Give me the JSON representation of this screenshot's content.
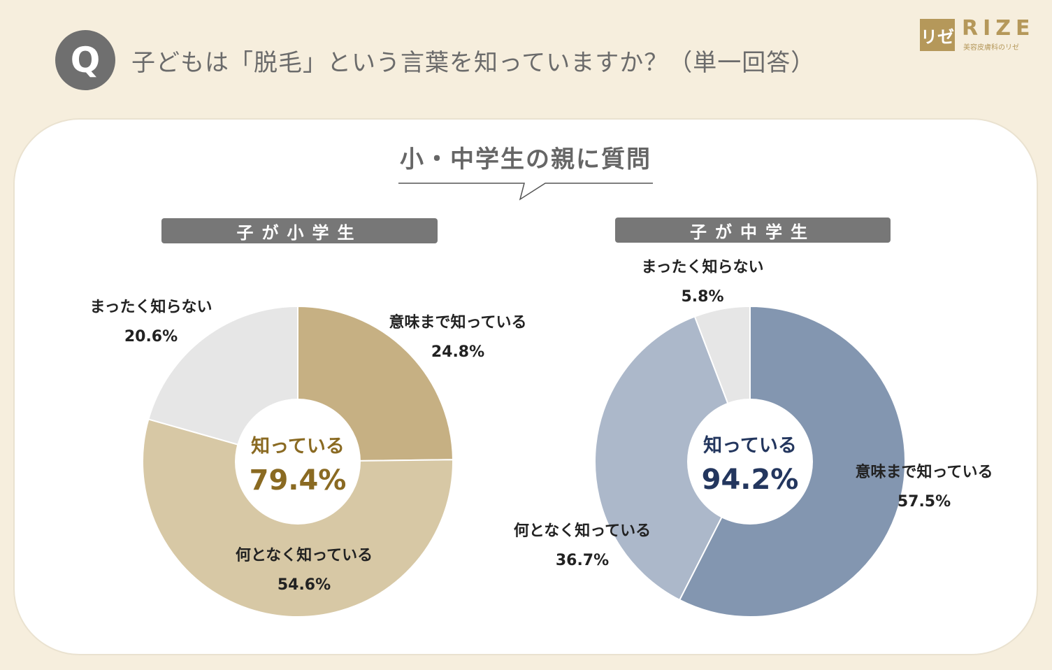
{
  "header": {
    "q_mark": "Q",
    "question": "子どもは「脱毛」という言葉を知っていますか？（単一回答）",
    "logo_mark": "リゼ",
    "logo_word": "RIZE",
    "logo_sub": "美容皮膚科のリゼ"
  },
  "subtitle": "小・中学生の親に質問",
  "colors": {
    "elem_know_meaning": "#c6b083",
    "elem_know_vaguely": "#d7c8a5",
    "elem_unknown": "#e6e6e6",
    "mid_know_meaning": "#8396b0",
    "mid_know_vaguely": "#acb8ca",
    "mid_unknown": "#e6e6e6",
    "elem_center_text": "#8a6a22",
    "mid_center_text": "#23365e"
  },
  "chart_data": [
    {
      "type": "pie",
      "title": "子が小学生",
      "center_label": "知っている",
      "center_value": "79.4%",
      "slices": [
        {
          "label": "意味まで知っている",
          "value": 24.8,
          "value_text": "24.8%"
        },
        {
          "label": "何となく知っている",
          "value": 54.6,
          "value_text": "54.6%"
        },
        {
          "label": "まったく知らない",
          "value": 20.6,
          "value_text": "20.6%"
        }
      ]
    },
    {
      "type": "pie",
      "title": "子が中学生",
      "center_label": "知っている",
      "center_value": "94.2%",
      "slices": [
        {
          "label": "意味まで知っている",
          "value": 57.5,
          "value_text": "57.5%"
        },
        {
          "label": "何となく知っている",
          "value": 36.7,
          "value_text": "36.7%"
        },
        {
          "label": "まったく知らない",
          "value": 5.8,
          "value_text": "5.8%"
        }
      ]
    }
  ]
}
